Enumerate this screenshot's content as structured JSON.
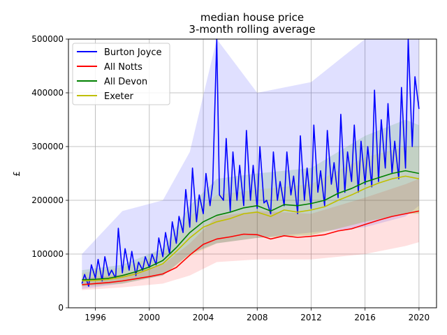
{
  "chart_data": {
    "type": "line",
    "title": "median house price",
    "subtitle": "3-month rolling average",
    "xlabel": "",
    "ylabel": "£",
    "xlim": [
      1994.0,
      2021.3
    ],
    "ylim": [
      0,
      500000
    ],
    "x_ticks": [
      1996,
      2000,
      2004,
      2008,
      2012,
      2016,
      2020
    ],
    "y_ticks": [
      0,
      100000,
      200000,
      300000,
      400000,
      500000
    ],
    "x_tick_labels": [
      "1996",
      "2000",
      "2004",
      "2008",
      "2012",
      "2016",
      "2020"
    ],
    "y_tick_labels": [
      "0",
      "100000",
      "200000",
      "300000",
      "400000",
      "500000"
    ],
    "grid": true,
    "legend_position": "top-left",
    "x_unit": "year",
    "series": [
      {
        "name": "Burton Joyce",
        "color": "#0000ff",
        "x": [
          1995.0,
          1995.2,
          1995.5,
          1995.7,
          1996.0,
          1996.2,
          1996.5,
          1996.7,
          1997.0,
          1997.2,
          1997.5,
          1997.7,
          1998.0,
          1998.2,
          1998.5,
          1998.7,
          1999.0,
          1999.2,
          1999.5,
          1999.7,
          2000.0,
          2000.2,
          2000.5,
          2000.7,
          2001.0,
          2001.2,
          2001.5,
          2001.7,
          2002.0,
          2002.2,
          2002.5,
          2002.7,
          2003.0,
          2003.2,
          2003.5,
          2003.7,
          2004.0,
          2004.2,
          2004.5,
          2004.7,
          2005.0,
          2005.2,
          2005.5,
          2005.7,
          2006.0,
          2006.2,
          2006.5,
          2006.7,
          2007.0,
          2007.2,
          2007.5,
          2007.7,
          2008.0,
          2008.2,
          2008.5,
          2008.7,
          2009.0,
          2009.2,
          2009.5,
          2009.7,
          2010.0,
          2010.2,
          2010.5,
          2010.7,
          2011.0,
          2011.2,
          2011.5,
          2011.7,
          2012.0,
          2012.2,
          2012.5,
          2012.7,
          2013.0,
          2013.2,
          2013.5,
          2013.7,
          2014.0,
          2014.2,
          2014.5,
          2014.7,
          2015.0,
          2015.2,
          2015.5,
          2015.7,
          2016.0,
          2016.2,
          2016.5,
          2016.7,
          2017.0,
          2017.2,
          2017.5,
          2017.7,
          2018.0,
          2018.2,
          2018.5,
          2018.7,
          2019.0,
          2019.2,
          2019.5,
          2019.7,
          2020.0
        ],
        "y": [
          45000,
          62000,
          40000,
          80000,
          55000,
          90000,
          50000,
          95000,
          60000,
          70000,
          55000,
          148000,
          65000,
          110000,
          70000,
          105000,
          60000,
          85000,
          70000,
          95000,
          75000,
          100000,
          80000,
          130000,
          95000,
          140000,
          100000,
          160000,
          120000,
          170000,
          140000,
          220000,
          150000,
          260000,
          160000,
          210000,
          175000,
          250000,
          190000,
          230000,
          500000,
          210000,
          200000,
          315000,
          180000,
          290000,
          200000,
          265000,
          190000,
          330000,
          200000,
          265000,
          185000,
          300000,
          195000,
          200000,
          175000,
          290000,
          200000,
          235000,
          190000,
          290000,
          210000,
          245000,
          175000,
          320000,
          200000,
          260000,
          185000,
          340000,
          215000,
          255000,
          190000,
          330000,
          230000,
          270000,
          205000,
          360000,
          215000,
          290000,
          235000,
          340000,
          215000,
          310000,
          230000,
          300000,
          225000,
          405000,
          235000,
          350000,
          260000,
          380000,
          250000,
          310000,
          240000,
          410000,
          260000,
          500000,
          300000,
          430000,
          370000
        ]
      },
      {
        "name": "All Notts",
        "color": "#ff0000",
        "x": [
          1995.0,
          1996.0,
          1997.0,
          1998.0,
          1999.0,
          2000.0,
          2001.0,
          2002.0,
          2003.0,
          2004.0,
          2005.0,
          2006.0,
          2007.0,
          2008.0,
          2009.0,
          2010.0,
          2011.0,
          2012.0,
          2013.0,
          2014.0,
          2015.0,
          2016.0,
          2017.0,
          2018.0,
          2019.0,
          2020.0
        ],
        "y": [
          43000,
          45000,
          47000,
          50000,
          54000,
          58000,
          63000,
          75000,
          98000,
          118000,
          128000,
          132000,
          137000,
          136000,
          128000,
          134000,
          131000,
          133000,
          136000,
          143000,
          147000,
          155000,
          163000,
          170000,
          175000,
          180000
        ]
      },
      {
        "name": "All Devon",
        "color": "#008000",
        "x": [
          1995.0,
          1996.0,
          1997.0,
          1998.0,
          1999.0,
          2000.0,
          2001.0,
          2002.0,
          2003.0,
          2004.0,
          2005.0,
          2006.0,
          2007.0,
          2008.0,
          2009.0,
          2010.0,
          2011.0,
          2012.0,
          2013.0,
          2014.0,
          2015.0,
          2016.0,
          2017.0,
          2018.0,
          2019.0,
          2020.0
        ],
        "y": [
          52000,
          53000,
          55000,
          60000,
          67000,
          76000,
          88000,
          112000,
          140000,
          160000,
          172000,
          178000,
          186000,
          190000,
          180000,
          192000,
          190000,
          194000,
          200000,
          213000,
          222000,
          234000,
          242000,
          250000,
          255000,
          250000
        ]
      },
      {
        "name": "Exeter",
        "color": "#bfbf00",
        "x": [
          1995.0,
          1996.0,
          1997.0,
          1998.0,
          1999.0,
          2000.0,
          2001.0,
          2002.0,
          2003.0,
          2004.0,
          2005.0,
          2006.0,
          2007.0,
          2008.0,
          2009.0,
          2010.0,
          2011.0,
          2012.0,
          2013.0,
          2014.0,
          2015.0,
          2016.0,
          2017.0,
          2018.0,
          2019.0,
          2020.0
        ],
        "y": [
          50000,
          51000,
          53000,
          57000,
          63000,
          72000,
          82000,
          105000,
          130000,
          150000,
          160000,
          166000,
          175000,
          178000,
          170000,
          182000,
          178000,
          182000,
          188000,
          200000,
          210000,
          222000,
          232000,
          240000,
          245000,
          240000
        ]
      }
    ],
    "bands": [
      {
        "series": "Burton Joyce",
        "color": "#0000ff",
        "x": [
          1995.0,
          1998.0,
          2001.0,
          2003.0,
          2005.0,
          2008.0,
          2012.0,
          2016.0,
          2019.0,
          2020.0
        ],
        "lower": [
          35000,
          45000,
          60000,
          100000,
          120000,
          130000,
          140000,
          150000,
          170000,
          190000
        ],
        "upper": [
          100000,
          180000,
          200000,
          290000,
          500000,
          400000,
          420000,
          500000,
          500000,
          500000
        ]
      },
      {
        "series": "All Notts",
        "color": "#ff0000",
        "x": [
          1995.0,
          1998.0,
          2001.0,
          2003.0,
          2005.0,
          2008.0,
          2012.0,
          2016.0,
          2019.0,
          2020.0
        ],
        "lower": [
          33000,
          38000,
          45000,
          60000,
          85000,
          90000,
          90000,
          100000,
          115000,
          122000
        ],
        "upper": [
          55000,
          62000,
          80000,
          120000,
          170000,
          180000,
          175000,
          205000,
          230000,
          240000
        ]
      },
      {
        "series": "All Devon",
        "color": "#008000",
        "x": [
          1995.0,
          1998.0,
          2001.0,
          2003.0,
          2005.0,
          2008.0,
          2012.0,
          2016.0,
          2019.0,
          2020.0
        ],
        "lower": [
          40000,
          45000,
          60000,
          100000,
          120000,
          130000,
          135000,
          160000,
          175000,
          175000
        ],
        "upper": [
          70000,
          80000,
          110000,
          190000,
          240000,
          250000,
          260000,
          320000,
          350000,
          340000
        ]
      },
      {
        "series": "Exeter",
        "color": "#bfbf00",
        "x": [
          1995.0,
          1998.0,
          2001.0,
          2003.0,
          2005.0,
          2008.0,
          2012.0,
          2016.0,
          2019.0,
          2020.0
        ],
        "lower": [
          40000,
          45000,
          60000,
          95000,
          120000,
          130000,
          135000,
          160000,
          175000,
          175000
        ],
        "upper": [
          65000,
          75000,
          100000,
          170000,
          210000,
          220000,
          230000,
          280000,
          300000,
          300000
        ]
      }
    ]
  }
}
